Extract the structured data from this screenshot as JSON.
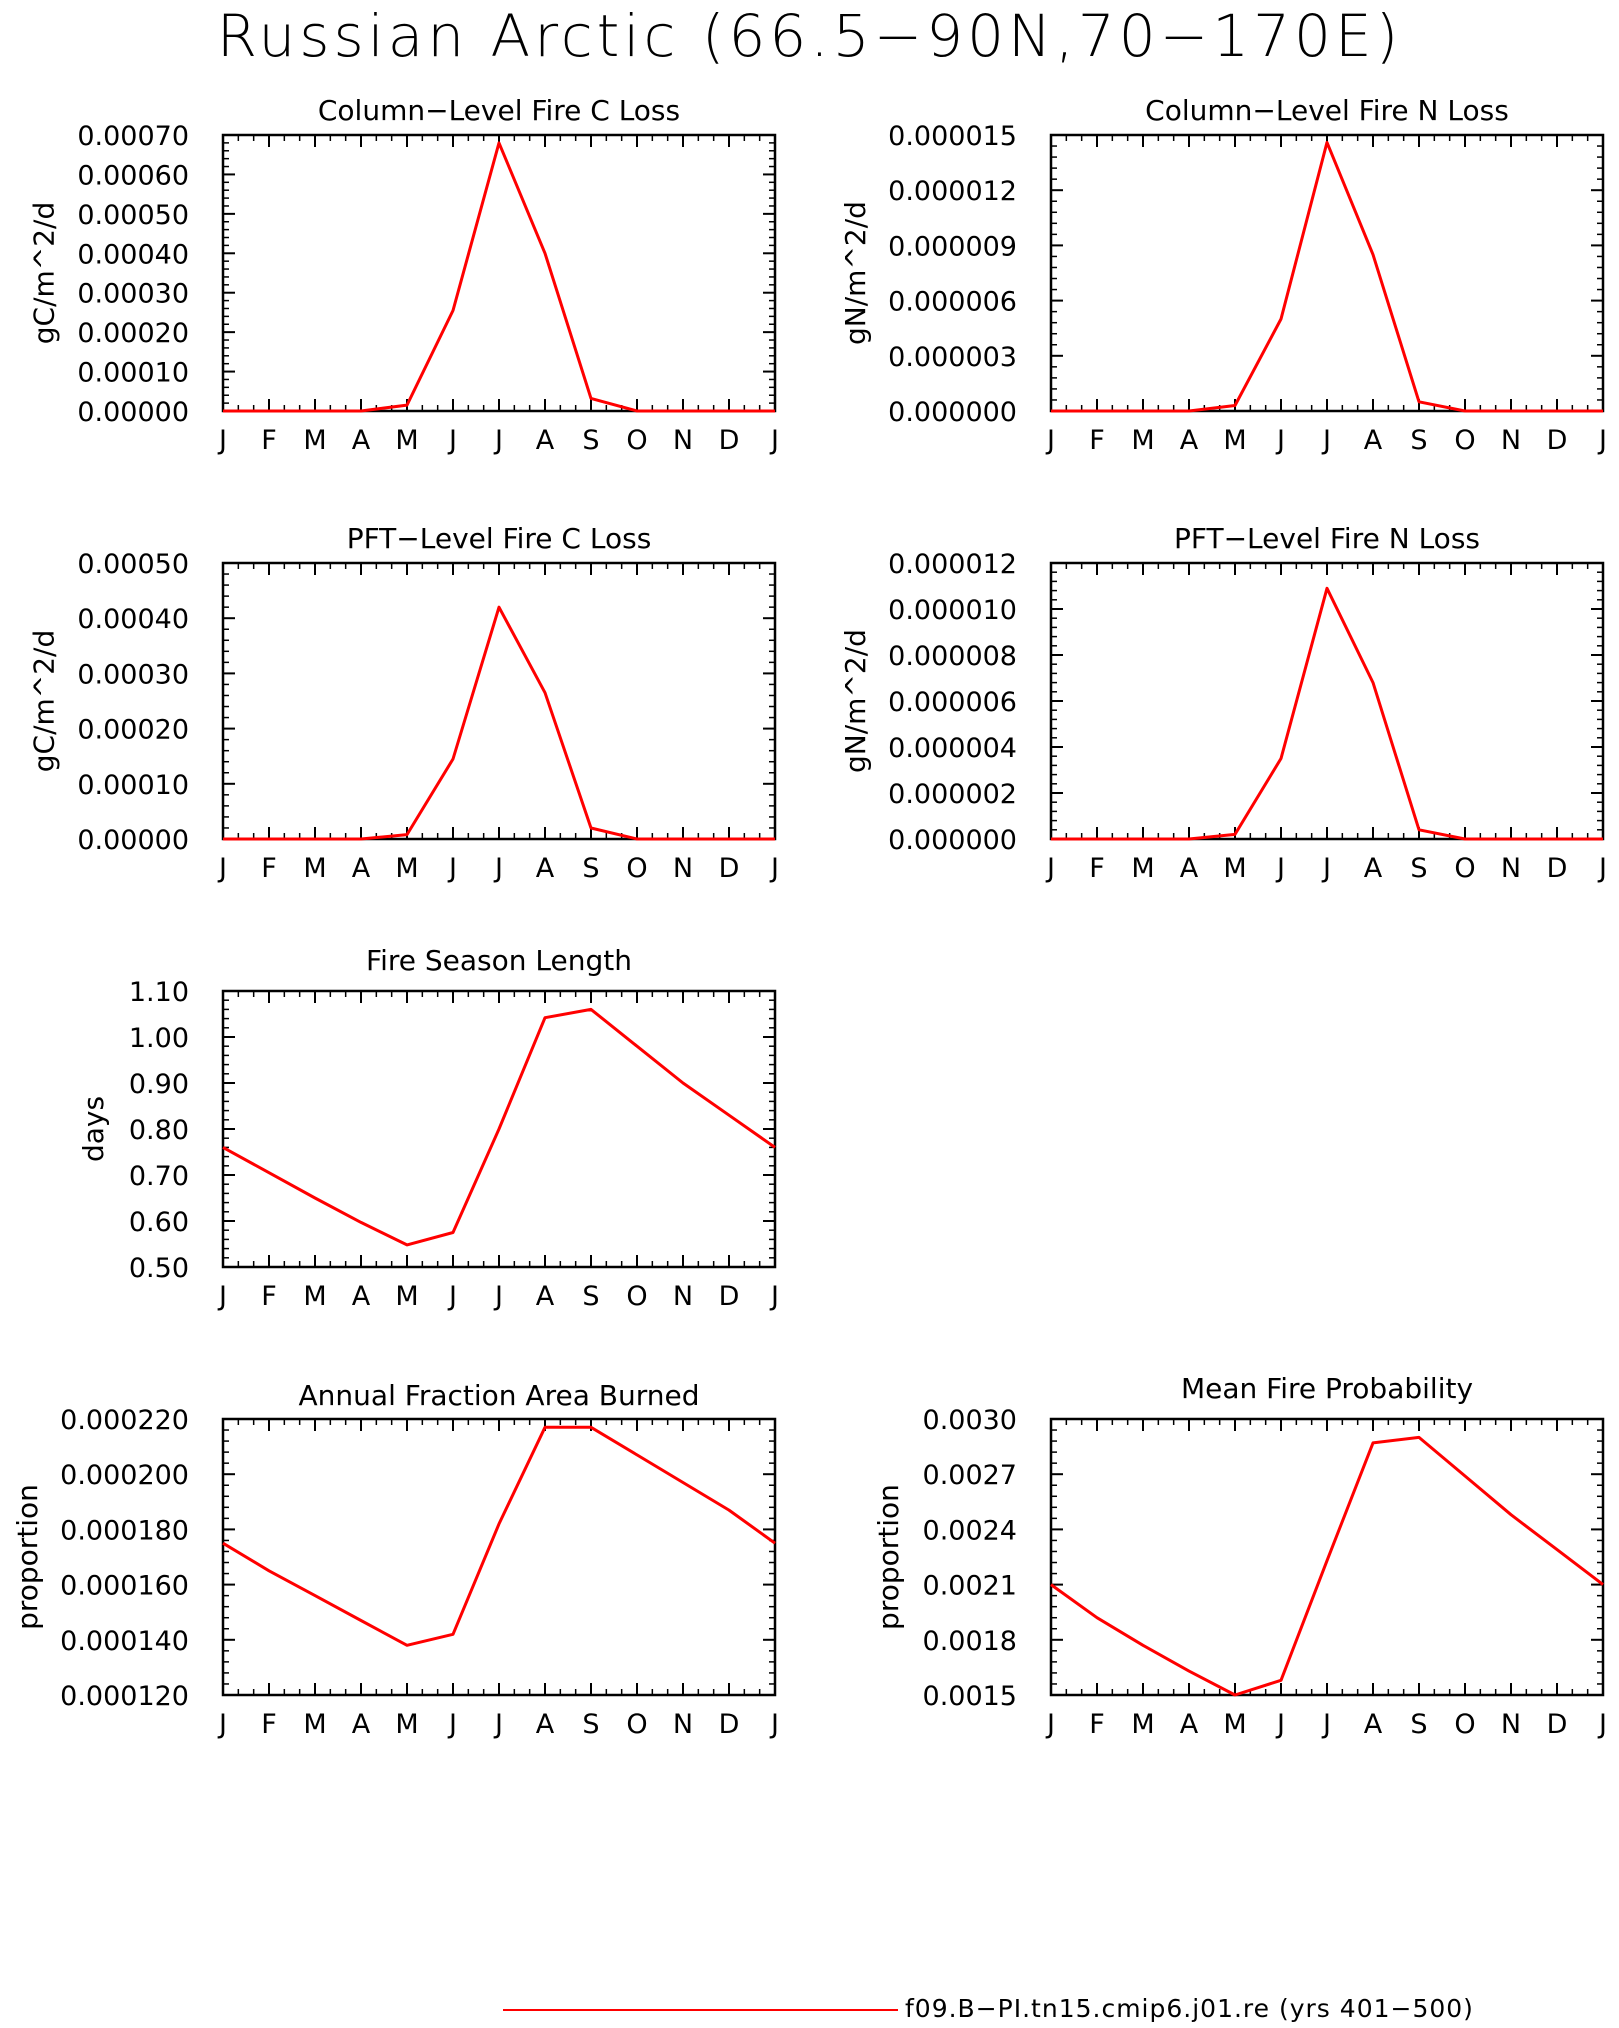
{
  "figure": {
    "title": "Russian Arctic (66.5−90N,70−170E)",
    "legend": {
      "label": "f09.B−PI.tn15.cmip6.j01.re (yrs 401−500)",
      "color": "#ff0000"
    }
  },
  "chart_data": [
    {
      "type": "line",
      "title": "Column−Level Fire C Loss",
      "ylabel": "gC/m^2/d",
      "categories": [
        "J",
        "F",
        "M",
        "A",
        "M",
        "J",
        "J",
        "A",
        "S",
        "O",
        "N",
        "D",
        "J"
      ],
      "yticks": [
        "0.00000",
        "0.00010",
        "0.00020",
        "0.00030",
        "0.00040",
        "0.00050",
        "0.00060",
        "0.00070"
      ],
      "ylim": [
        0,
        0.0007
      ],
      "grid": false,
      "series": [
        {
          "color": "#ff0000",
          "values": [
            0,
            0,
            0,
            0,
            1.5e-05,
            0.000255,
            0.00068,
            0.0004,
            3.2e-05,
            0,
            0,
            0,
            0
          ]
        }
      ]
    },
    {
      "type": "line",
      "title": "Column−Level Fire N Loss",
      "ylabel": "gN/m^2/d",
      "categories": [
        "J",
        "F",
        "M",
        "A",
        "M",
        "J",
        "J",
        "A",
        "S",
        "O",
        "N",
        "D",
        "J"
      ],
      "yticks": [
        "0.000000",
        "0.000003",
        "0.000006",
        "0.000009",
        "0.000012",
        "0.000015"
      ],
      "ylim": [
        0,
        1.5e-05
      ],
      "grid": false,
      "series": [
        {
          "color": "#ff0000",
          "values": [
            0,
            0,
            0,
            0,
            3e-07,
            5e-06,
            1.46e-05,
            8.5e-06,
            5e-07,
            0,
            0,
            0,
            0
          ]
        }
      ]
    },
    {
      "type": "line",
      "title": "PFT−Level Fire C Loss",
      "ylabel": "gC/m^2/d",
      "categories": [
        "J",
        "F",
        "M",
        "A",
        "M",
        "J",
        "J",
        "A",
        "S",
        "O",
        "N",
        "D",
        "J"
      ],
      "yticks": [
        "0.00000",
        "0.00010",
        "0.00020",
        "0.00030",
        "0.00040",
        "0.00050"
      ],
      "ylim": [
        0,
        0.0005
      ],
      "grid": false,
      "series": [
        {
          "color": "#ff0000",
          "values": [
            0,
            0,
            0,
            0,
            8e-06,
            0.000145,
            0.00042,
            0.000265,
            2e-05,
            0,
            0,
            0,
            0
          ]
        }
      ]
    },
    {
      "type": "line",
      "title": "PFT−Level Fire N Loss",
      "ylabel": "gN/m^2/d",
      "categories": [
        "J",
        "F",
        "M",
        "A",
        "M",
        "J",
        "J",
        "A",
        "S",
        "O",
        "N",
        "D",
        "J"
      ],
      "yticks": [
        "0.000000",
        "0.000002",
        "0.000004",
        "0.000006",
        "0.000008",
        "0.000010",
        "0.000012"
      ],
      "ylim": [
        0,
        1.2e-05
      ],
      "grid": false,
      "series": [
        {
          "color": "#ff0000",
          "values": [
            0,
            0,
            0,
            0,
            2e-07,
            3.5e-06,
            1.09e-05,
            6.8e-06,
            4e-07,
            0,
            0,
            0,
            0
          ]
        }
      ]
    },
    {
      "type": "line",
      "title": "Fire Season Length",
      "ylabel": "days",
      "categories": [
        "J",
        "F",
        "M",
        "A",
        "M",
        "J",
        "J",
        "A",
        "S",
        "O",
        "N",
        "D",
        "J"
      ],
      "yticks": [
        "0.50",
        "0.60",
        "0.70",
        "0.80",
        "0.90",
        "1.00",
        "1.10"
      ],
      "ylim": [
        0.5,
        1.1
      ],
      "grid": false,
      "series": [
        {
          "color": "#ff0000",
          "values": [
            0.76,
            0.705,
            0.65,
            0.597,
            0.548,
            0.575,
            0.8,
            1.042,
            1.06,
            0.98,
            0.9,
            0.83,
            0.76
          ]
        }
      ]
    },
    {
      "type": "line",
      "title": "Annual Fraction Area Burned",
      "ylabel": "proportion",
      "categories": [
        "J",
        "F",
        "M",
        "A",
        "M",
        "J",
        "J",
        "A",
        "S",
        "O",
        "N",
        "D",
        "J"
      ],
      "yticks": [
        "0.000120",
        "0.000140",
        "0.000160",
        "0.000180",
        "0.000200",
        "0.000220"
      ],
      "ylim": [
        0.00012,
        0.00022
      ],
      "grid": false,
      "series": [
        {
          "color": "#ff0000",
          "values": [
            0.000175,
            0.000165,
            0.000156,
            0.000147,
            0.000138,
            0.000142,
            0.000182,
            0.000217,
            0.000217,
            0.000207,
            0.000197,
            0.000187,
            0.000175
          ]
        }
      ]
    },
    {
      "type": "line",
      "title": "Mean Fire Probability",
      "ylabel": "proportion",
      "categories": [
        "J",
        "F",
        "M",
        "A",
        "M",
        "J",
        "J",
        "A",
        "S",
        "O",
        "N",
        "D",
        "J"
      ],
      "yticks": [
        "0.0015",
        "0.0018",
        "0.0021",
        "0.0024",
        "0.0027",
        "0.0030"
      ],
      "ylim": [
        0.0015,
        0.003
      ],
      "grid": false,
      "series": [
        {
          "color": "#ff0000",
          "values": [
            0.0021,
            0.00192,
            0.00177,
            0.00163,
            0.0015,
            0.00158,
            0.00223,
            0.00287,
            0.0029,
            0.00269,
            0.00248,
            0.00229,
            0.0021
          ]
        }
      ]
    }
  ]
}
